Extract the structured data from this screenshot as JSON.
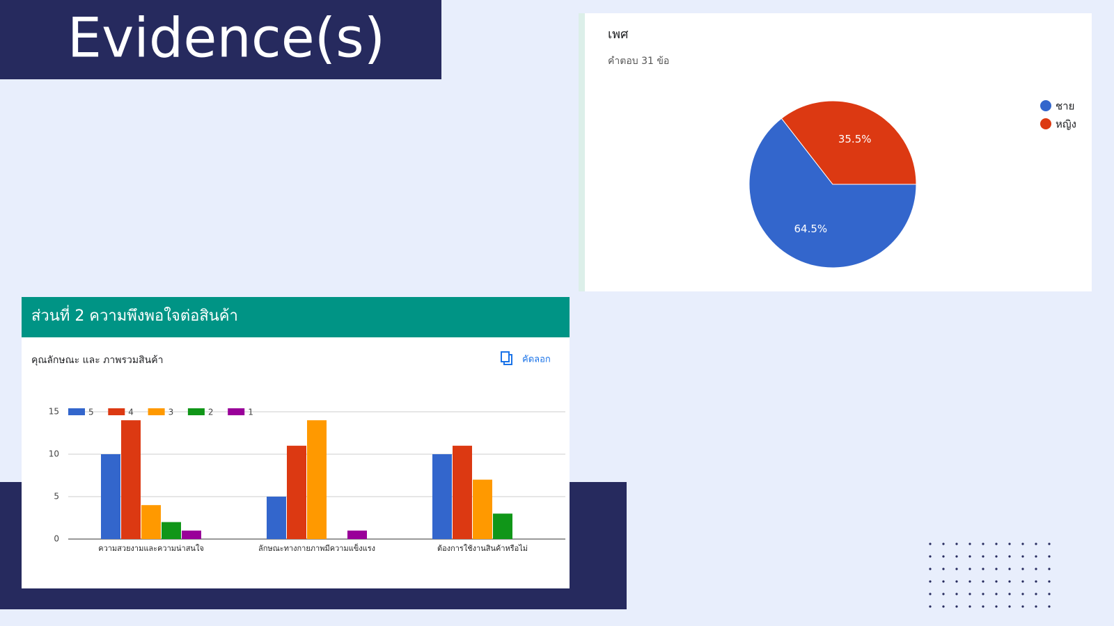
{
  "page": {
    "title": "Evidence(s)",
    "section": "ส่วนที่ 2 ความพึงพอใจต่อสินค้า",
    "copy": "คัดลอก"
  },
  "chart_data": [
    {
      "type": "pie",
      "title": "เพศ",
      "subtitle": "คำตอบ 31 ข้อ",
      "categories": [
        "ชาย",
        "หญิง"
      ],
      "values": [
        64.5,
        35.5
      ],
      "value_labels": [
        "64.5%",
        "35.5%"
      ],
      "colors": [
        "#3366cc",
        "#dc3912"
      ],
      "legend": "right"
    },
    {
      "type": "bar",
      "title": "คุณลักษณะ และ ภาพรวมสินค้า",
      "categories": [
        "ความสวยงามและความน่าสนใจ",
        "ลักษณะทางกายภาพมีความแข็งแรง",
        "ต้องการใช้งานสินค้าหรือไม่"
      ],
      "series": [
        {
          "name": "5",
          "color": "#3366cc",
          "values": [
            10,
            5,
            10
          ]
        },
        {
          "name": "4",
          "color": "#dc3912",
          "values": [
            14,
            11,
            11
          ]
        },
        {
          "name": "3",
          "color": "#ff9900",
          "values": [
            4,
            14,
            7
          ]
        },
        {
          "name": "2",
          "color": "#109618",
          "values": [
            2,
            0,
            3
          ]
        },
        {
          "name": "1",
          "color": "#990099",
          "values": [
            1,
            1,
            0
          ]
        }
      ],
      "ylim": [
        0,
        15
      ],
      "yticks": [
        0,
        5,
        10,
        15
      ],
      "grid": true,
      "legend": "top"
    }
  ]
}
